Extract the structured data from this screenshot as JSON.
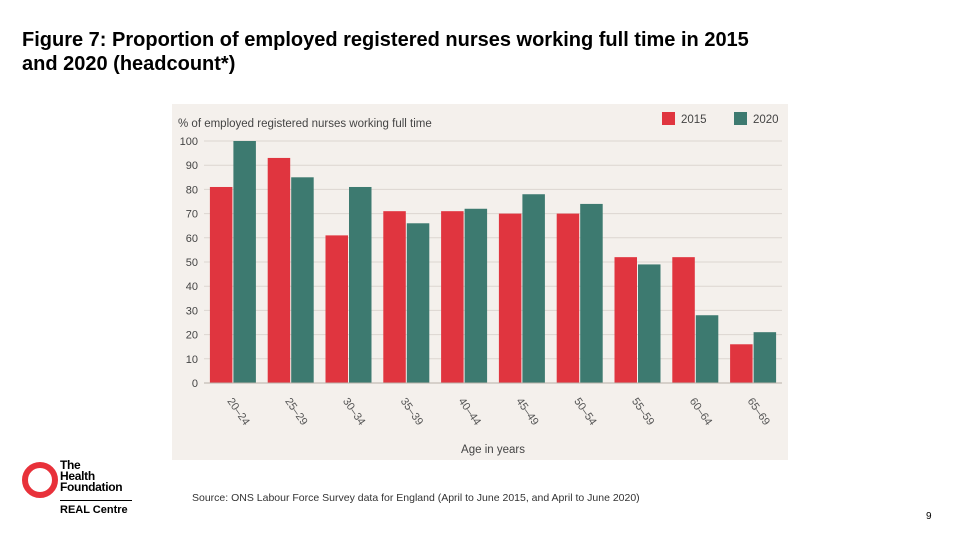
{
  "slide": {
    "title_line1": "Figure 7: Proportion of employed registered nurses working full time in 2015",
    "title_line2": "and 2020 (headcount*)",
    "source": "Source: ONS Labour Force Survey data for England (April to June 2015, and April to June 2020)",
    "page_number": "9"
  },
  "logo": {
    "line1": "The",
    "line2": "Health",
    "line3": "Foundation",
    "subtitle": "REAL Centre"
  },
  "chart_data": {
    "type": "bar",
    "title": "% of employed registered nurses working full time",
    "xlabel": "Age in years",
    "ylabel": "% of employed registered nurses working full time",
    "ylim": [
      0,
      100
    ],
    "yticks": [
      0,
      10,
      20,
      30,
      40,
      50,
      60,
      70,
      80,
      90,
      100
    ],
    "grid": true,
    "legend_position": "top-right",
    "categories": [
      "20–24",
      "25–29",
      "30–34",
      "35–39",
      "40–44",
      "45–49",
      "50–54",
      "55–59",
      "60–64",
      "65–69"
    ],
    "series": [
      {
        "name": "2015",
        "color": "#e0353f",
        "values": [
          81,
          93,
          61,
          71,
          71,
          70,
          70,
          52,
          52,
          16
        ]
      },
      {
        "name": "2020",
        "color": "#3d7a70",
        "values": [
          100,
          85,
          81,
          66,
          72,
          78,
          74,
          49,
          28,
          21
        ]
      }
    ]
  }
}
